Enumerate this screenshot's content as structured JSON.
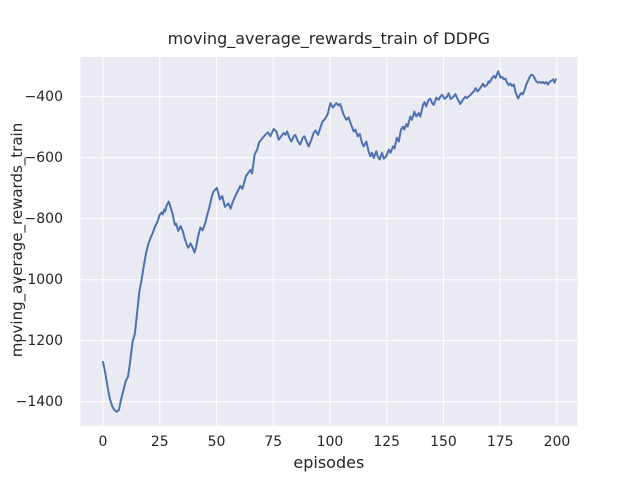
{
  "figure": {
    "background_color": "#ffffff",
    "axes_background_color": "#eaeaf2",
    "grid_color": "#ffffff",
    "text_color": "#262626",
    "line_color": "#4c72b0"
  },
  "chart_data": {
    "type": "line",
    "title": "moving_average_rewards_train of DDPG",
    "xlabel": "episodes",
    "ylabel": "moving_average_rewards_train",
    "grid": true,
    "legend": null,
    "xlim": [
      -9.95,
      208.95
    ],
    "ylim": [
      -1478,
      -270
    ],
    "x_ticks": [
      0,
      25,
      50,
      75,
      100,
      125,
      150,
      175,
      200
    ],
    "x_tick_labels": [
      "0",
      "25",
      "50",
      "75",
      "100",
      "125",
      "150",
      "175",
      "200"
    ],
    "y_ticks": [
      -400,
      -600,
      -800,
      -1000,
      -1200,
      -1400
    ],
    "y_tick_labels": [
      "−400",
      "−600",
      "−800",
      "−1000",
      "−1200",
      "−1400"
    ],
    "series": [
      {
        "name": "moving_average_rewards_train",
        "color": "#4c72b0",
        "line_width": 2,
        "points": [
          [
            0,
            -1270
          ],
          [
            1,
            -1306
          ],
          [
            2,
            -1350
          ],
          [
            3,
            -1390
          ],
          [
            4,
            -1414
          ],
          [
            5,
            -1427
          ],
          [
            6,
            -1433
          ],
          [
            7,
            -1427
          ],
          [
            8,
            -1392
          ],
          [
            9,
            -1363
          ],
          [
            10,
            -1332
          ],
          [
            11,
            -1318
          ],
          [
            12,
            -1268
          ],
          [
            13,
            -1205
          ],
          [
            14,
            -1178
          ],
          [
            15,
            -1112
          ],
          [
            16,
            -1040
          ],
          [
            17,
            -1000
          ],
          [
            18,
            -955
          ],
          [
            19,
            -912
          ],
          [
            20,
            -882
          ],
          [
            21,
            -862
          ],
          [
            22,
            -846
          ],
          [
            23,
            -824
          ],
          [
            24,
            -810
          ],
          [
            25,
            -787
          ],
          [
            25.8,
            -780
          ],
          [
            26.3,
            -786
          ],
          [
            27,
            -770
          ],
          [
            27.4,
            -776
          ],
          [
            28,
            -758
          ],
          [
            29,
            -744
          ],
          [
            30,
            -768
          ],
          [
            30.7,
            -786
          ],
          [
            31.4,
            -813
          ],
          [
            31.8,
            -821
          ],
          [
            32.2,
            -816
          ],
          [
            33.2,
            -840
          ],
          [
            34.2,
            -824
          ],
          [
            35.1,
            -840
          ],
          [
            36.1,
            -867
          ],
          [
            37.1,
            -889
          ],
          [
            37.6,
            -895
          ],
          [
            38.6,
            -881
          ],
          [
            39.5,
            -895
          ],
          [
            40.3,
            -911
          ],
          [
            41,
            -893
          ],
          [
            42,
            -855
          ],
          [
            42.9,
            -829
          ],
          [
            43.9,
            -838
          ],
          [
            45.1,
            -813
          ],
          [
            45.8,
            -791
          ],
          [
            46.6,
            -770
          ],
          [
            47.3,
            -748
          ],
          [
            48,
            -726
          ],
          [
            48.8,
            -710
          ],
          [
            50.2,
            -699
          ],
          [
            51.5,
            -737
          ],
          [
            52.5,
            -726
          ],
          [
            53.7,
            -761
          ],
          [
            55.2,
            -750
          ],
          [
            56.2,
            -767
          ],
          [
            57.2,
            -745
          ],
          [
            58.3,
            -726
          ],
          [
            60.5,
            -693
          ],
          [
            61.4,
            -702
          ],
          [
            63,
            -660
          ],
          [
            64.9,
            -640
          ],
          [
            65.7,
            -652
          ],
          [
            66.8,
            -590
          ],
          [
            67.9,
            -574
          ],
          [
            68.8,
            -549
          ],
          [
            70,
            -538
          ],
          [
            71.5,
            -525
          ],
          [
            72.7,
            -517
          ],
          [
            73.7,
            -530
          ],
          [
            75.2,
            -506
          ],
          [
            76.4,
            -514
          ],
          [
            77.4,
            -541
          ],
          [
            79,
            -525
          ],
          [
            79.6,
            -519
          ],
          [
            80.4,
            -525
          ],
          [
            81.1,
            -514
          ],
          [
            82.1,
            -535
          ],
          [
            83,
            -547
          ],
          [
            84,
            -530
          ],
          [
            84.7,
            -525
          ],
          [
            85.9,
            -547
          ],
          [
            86.9,
            -557
          ],
          [
            88,
            -535
          ],
          [
            88.7,
            -530
          ],
          [
            89.9,
            -552
          ],
          [
            90.6,
            -563
          ],
          [
            91.8,
            -541
          ],
          [
            92.8,
            -519
          ],
          [
            93.6,
            -511
          ],
          [
            94.7,
            -525
          ],
          [
            95.8,
            -500
          ],
          [
            96.8,
            -480
          ],
          [
            97.4,
            -477
          ],
          [
            98.2,
            -468
          ],
          [
            99.1,
            -455
          ],
          [
            100.2,
            -421
          ],
          [
            101.3,
            -436
          ],
          [
            102.8,
            -421
          ],
          [
            103.8,
            -429
          ],
          [
            104.5,
            -424
          ],
          [
            106,
            -459
          ],
          [
            107.2,
            -476
          ],
          [
            108.2,
            -468
          ],
          [
            109.3,
            -492
          ],
          [
            110.4,
            -514
          ],
          [
            111.2,
            -508
          ],
          [
            112.2,
            -530
          ],
          [
            113.1,
            -522
          ],
          [
            114.1,
            -552
          ],
          [
            114.8,
            -563
          ],
          [
            116,
            -547
          ],
          [
            117,
            -579
          ],
          [
            117.8,
            -596
          ],
          [
            118.5,
            -584
          ],
          [
            119.3,
            -601
          ],
          [
            120.4,
            -579
          ],
          [
            121,
            -596
          ],
          [
            121.9,
            -606
          ],
          [
            122.9,
            -584
          ],
          [
            123.7,
            -603
          ],
          [
            124.7,
            -596
          ],
          [
            125.9,
            -574
          ],
          [
            126.6,
            -584
          ],
          [
            127.8,
            -563
          ],
          [
            128.4,
            -570
          ],
          [
            129.5,
            -535
          ],
          [
            130.3,
            -547
          ],
          [
            131.3,
            -508
          ],
          [
            132.2,
            -498
          ],
          [
            132.8,
            -508
          ],
          [
            133.6,
            -490
          ],
          [
            134.2,
            -498
          ],
          [
            135.4,
            -465
          ],
          [
            136.1,
            -476
          ],
          [
            137.2,
            -449
          ],
          [
            138,
            -465
          ],
          [
            139.1,
            -454
          ],
          [
            139.8,
            -465
          ],
          [
            141,
            -427
          ],
          [
            141.7,
            -418
          ],
          [
            142.4,
            -432
          ],
          [
            143.5,
            -410
          ],
          [
            144.2,
            -407
          ],
          [
            145,
            -421
          ],
          [
            145.7,
            -427
          ],
          [
            146.9,
            -403
          ],
          [
            147.9,
            -410
          ],
          [
            148.6,
            -400
          ],
          [
            149.4,
            -394
          ],
          [
            150.5,
            -407
          ],
          [
            151.6,
            -400
          ],
          [
            152.3,
            -389
          ],
          [
            153.2,
            -408
          ],
          [
            154.5,
            -399
          ],
          [
            155.2,
            -392
          ],
          [
            156.2,
            -407
          ],
          [
            157.4,
            -424
          ],
          [
            158.6,
            -410
          ],
          [
            159.6,
            -400
          ],
          [
            160.3,
            -405
          ],
          [
            161.5,
            -397
          ],
          [
            163.3,
            -383
          ],
          [
            164.2,
            -372
          ],
          [
            165,
            -383
          ],
          [
            165.9,
            -375
          ],
          [
            167.4,
            -358
          ],
          [
            168.1,
            -367
          ],
          [
            169.2,
            -361
          ],
          [
            169.9,
            -350
          ],
          [
            170.4,
            -353
          ],
          [
            171.4,
            -339
          ],
          [
            172.2,
            -332
          ],
          [
            172.9,
            -339
          ],
          [
            174.1,
            -317
          ],
          [
            175.1,
            -338
          ],
          [
            175.8,
            -335
          ],
          [
            176.6,
            -343
          ],
          [
            177.3,
            -341
          ],
          [
            178,
            -354
          ],
          [
            178.8,
            -362
          ],
          [
            179.5,
            -357
          ],
          [
            180.2,
            -365
          ],
          [
            181,
            -360
          ],
          [
            181.7,
            -384
          ],
          [
            182.4,
            -398
          ],
          [
            182.9,
            -406
          ],
          [
            183.6,
            -395
          ],
          [
            184.3,
            -388
          ],
          [
            184.9,
            -393
          ],
          [
            185.7,
            -379
          ],
          [
            186.5,
            -360
          ],
          [
            187.3,
            -346
          ],
          [
            188,
            -335
          ],
          [
            188.7,
            -328
          ],
          [
            189.5,
            -330
          ],
          [
            190.1,
            -339
          ],
          [
            190.8,
            -349
          ],
          [
            191.6,
            -354
          ],
          [
            192.3,
            -352
          ],
          [
            193,
            -355
          ],
          [
            193.8,
            -352
          ],
          [
            194.5,
            -357
          ],
          [
            195.2,
            -352
          ],
          [
            196,
            -360
          ],
          [
            196.7,
            -352
          ],
          [
            197.9,
            -346
          ],
          [
            198.3,
            -343
          ],
          [
            198.9,
            -354
          ],
          [
            199.5,
            -343
          ]
        ]
      }
    ]
  }
}
